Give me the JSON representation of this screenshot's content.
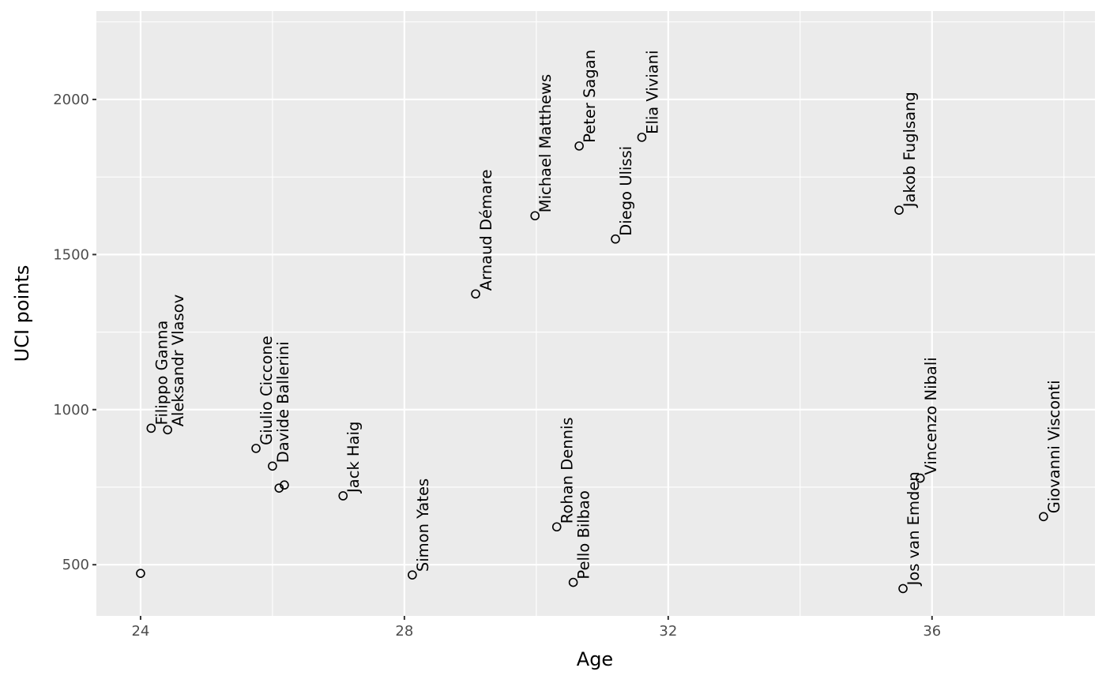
{
  "chart_data": {
    "type": "scatter",
    "xlabel": "Age",
    "ylabel": "UCI points",
    "xlim": [
      23.33,
      38.47
    ],
    "ylim": [
      335,
      2285
    ],
    "x_major_ticks": [
      24,
      28,
      32,
      36
    ],
    "x_minor_ticks": [
      26,
      30,
      34,
      38
    ],
    "y_major_ticks": [
      500,
      1000,
      1500,
      2000
    ],
    "y_minor_ticks": [
      750,
      1250,
      1750,
      2250
    ],
    "x_tick_labels": [
      "24",
      "28",
      "32",
      "36"
    ],
    "y_tick_labels": [
      "500",
      "1000",
      "1500",
      "2000"
    ],
    "grid": true,
    "legend": "none",
    "colors": {
      "panel_background": "#ebebeb",
      "grid": "#ffffff",
      "point_stroke": "#000000",
      "tick_text": "#4d4d4d",
      "axis_title_text": "#000000"
    },
    "points": [
      {
        "x": 24.0,
        "y": 472
      },
      {
        "x": 24.16,
        "y": 940,
        "label": "Filippo Ganna"
      },
      {
        "x": 24.41,
        "y": 935,
        "label": "Aleksandr Vlasov"
      },
      {
        "x": 25.75,
        "y": 875,
        "label": "Giulio Ciccone"
      },
      {
        "x": 26.0,
        "y": 818,
        "label": "Davide Ballerini"
      },
      {
        "x": 26.1,
        "y": 747
      },
      {
        "x": 26.18,
        "y": 757
      },
      {
        "x": 27.07,
        "y": 722,
        "label": "Jack Haig"
      },
      {
        "x": 28.12,
        "y": 467,
        "label": "Simon Yates"
      },
      {
        "x": 29.08,
        "y": 1373,
        "label": "Arnaud Démare"
      },
      {
        "x": 29.98,
        "y": 1625,
        "label": "Michael Matthews"
      },
      {
        "x": 30.31,
        "y": 622,
        "label": "Rohan Dennis"
      },
      {
        "x": 30.56,
        "y": 443,
        "label": "Pello Bilbao"
      },
      {
        "x": 30.65,
        "y": 1850,
        "label": "Peter Sagan"
      },
      {
        "x": 31.2,
        "y": 1550,
        "label": "Diego Ulissi"
      },
      {
        "x": 31.6,
        "y": 1878,
        "label": "Elia Viviani"
      },
      {
        "x": 35.5,
        "y": 1643,
        "label": "Jakob Fuglsang"
      },
      {
        "x": 35.56,
        "y": 423,
        "label": "Jos van Emden"
      },
      {
        "x": 35.82,
        "y": 779,
        "label": "Vincenzo Nibali"
      },
      {
        "x": 37.69,
        "y": 655,
        "label": "Giovanni Visconti"
      }
    ]
  }
}
